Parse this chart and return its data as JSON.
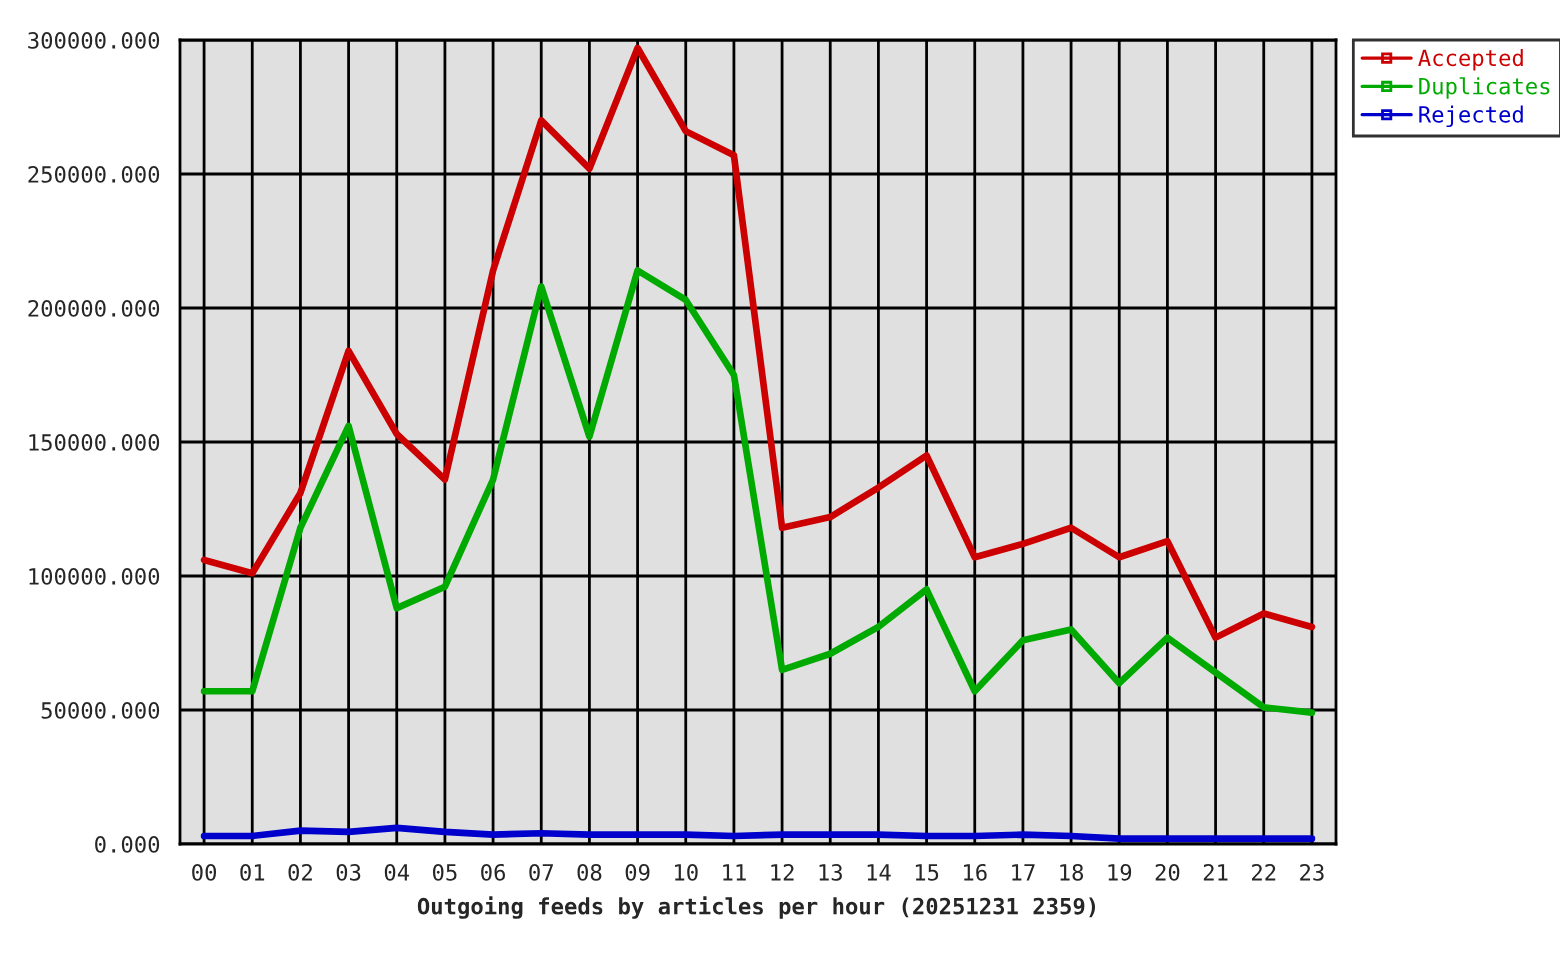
{
  "chart_data": {
    "type": "line",
    "xlabel": "Outgoing feeds by articles per hour (20251231 2359)",
    "categories": [
      "00",
      "01",
      "02",
      "03",
      "04",
      "05",
      "06",
      "07",
      "08",
      "09",
      "10",
      "11",
      "12",
      "13",
      "14",
      "15",
      "16",
      "17",
      "18",
      "19",
      "20",
      "21",
      "22",
      "23"
    ],
    "series": [
      {
        "name": "Accepted",
        "color": "#cc0000",
        "values": [
          106000,
          101000,
          131000,
          184000,
          153000,
          136000,
          214000,
          270000,
          252000,
          297000,
          266000,
          257000,
          118000,
          122000,
          133000,
          145000,
          107000,
          112000,
          118000,
          107000,
          113000,
          77000,
          86000,
          81000
        ]
      },
      {
        "name": "Duplicates",
        "color": "#00aa00",
        "values": [
          57000,
          57000,
          118000,
          156000,
          88000,
          96000,
          136000,
          208000,
          152000,
          214000,
          203000,
          175000,
          65000,
          71000,
          81000,
          95000,
          57000,
          76000,
          80000,
          60000,
          77000,
          64000,
          51000,
          49000
        ]
      },
      {
        "name": "Rejected",
        "color": "#0000cc",
        "values": [
          3000,
          3000,
          5000,
          4500,
          6000,
          4500,
          3500,
          4000,
          3500,
          3500,
          3500,
          3000,
          3500,
          3500,
          3500,
          3000,
          3000,
          3500,
          3000,
          2000,
          2000,
          2000,
          2000,
          2000
        ]
      }
    ],
    "ylim": [
      0,
      300000
    ],
    "yticks": [
      {
        "value": 0,
        "label": "0.000"
      },
      {
        "value": 50000,
        "label": "50000.000"
      },
      {
        "value": 100000,
        "label": "100000.000"
      },
      {
        "value": 150000,
        "label": "150000.000"
      },
      {
        "value": 200000,
        "label": "200000.000"
      },
      {
        "value": 250000,
        "label": "250000.000"
      },
      {
        "value": 300000,
        "label": "300000.000"
      }
    ],
    "grid": true,
    "legend": "top right",
    "line_style": "solid"
  }
}
